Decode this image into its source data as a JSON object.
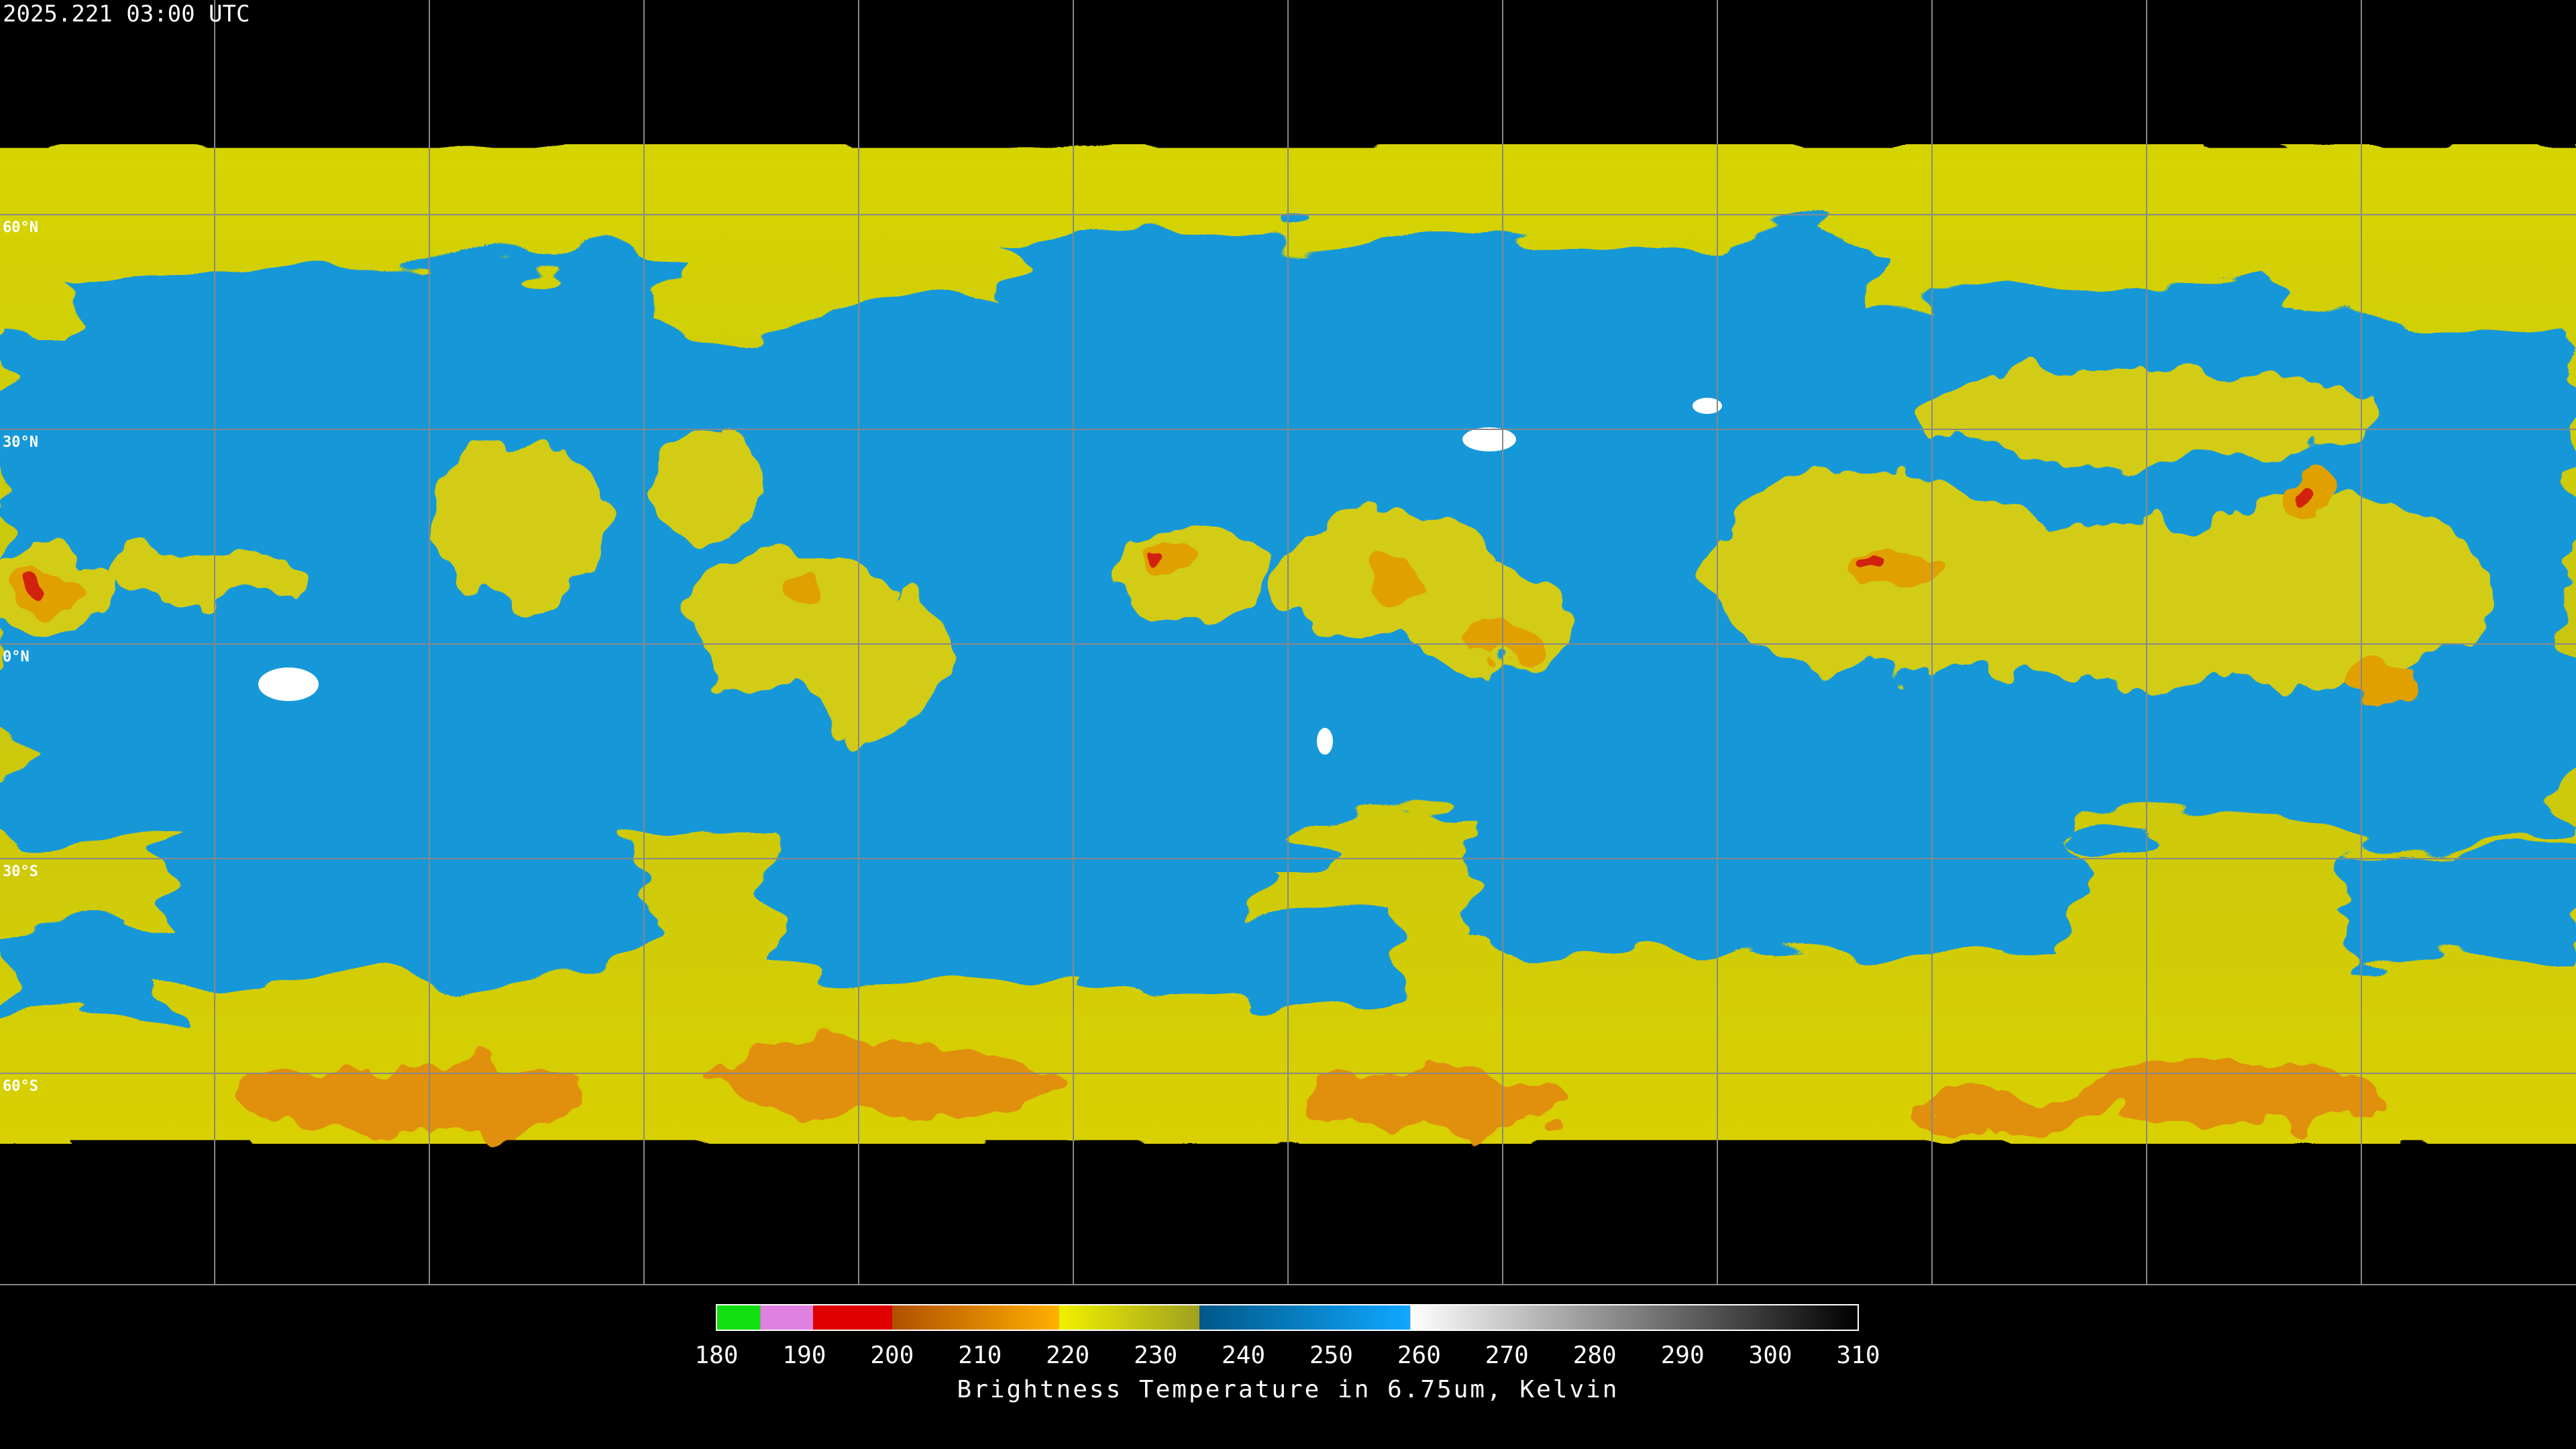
{
  "timestamp": "2025.221 03:00 UTC",
  "latitude_labels": [
    "60°N",
    "30°N",
    "0°N",
    "30°S",
    "60°S"
  ],
  "colorbar": {
    "label": "Brightness Temperature in 6.75um, Kelvin",
    "ticks": [
      180,
      190,
      200,
      210,
      220,
      230,
      240,
      250,
      260,
      270,
      280,
      290,
      300,
      310
    ],
    "segments": [
      {
        "from": 180,
        "to": 185,
        "colors": [
          "#10e010",
          "#10e010"
        ]
      },
      {
        "from": 185,
        "to": 191,
        "colors": [
          "#e080e0",
          "#e080e0"
        ]
      },
      {
        "from": 191,
        "to": 200,
        "colors": [
          "#e00000",
          "#e00000"
        ]
      },
      {
        "from": 200,
        "to": 219,
        "colors": [
          "#b05000",
          "#ffb000"
        ]
      },
      {
        "from": 219,
        "to": 235,
        "colors": [
          "#f0f000",
          "#a0a020"
        ]
      },
      {
        "from": 235,
        "to": 259,
        "colors": [
          "#005888",
          "#10a8ff"
        ]
      },
      {
        "from": 259,
        "to": 310,
        "colors": [
          "#ffffff",
          "#000000"
        ]
      }
    ]
  }
}
